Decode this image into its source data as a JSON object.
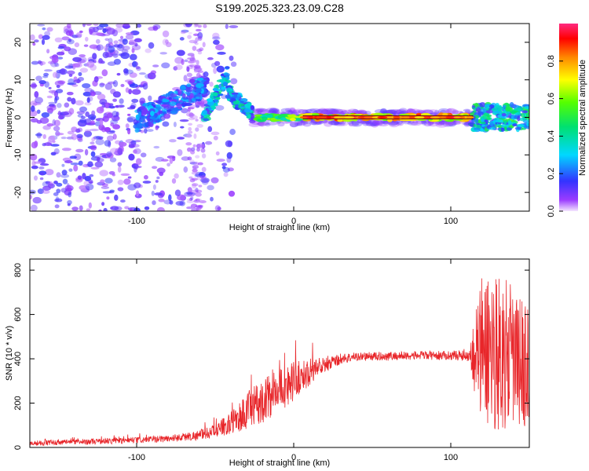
{
  "figure_title": "S199.2025.323.23.09.C28",
  "chart_data": [
    {
      "type": "heatmap",
      "title": "S199.2025.323.23.09.C28",
      "xlabel": "Height of straight line (km)",
      "ylabel": "Frequency (Hz)",
      "xlim": [
        -168,
        150
      ],
      "ylim": [
        -25,
        25
      ],
      "xticks": [
        -100,
        0,
        100
      ],
      "yticks": [
        -20,
        -10,
        0,
        10,
        20
      ],
      "colorbar": {
        "label": "Normalized spectral amplitude",
        "range": [
          0,
          1
        ],
        "ticks": [
          0.0,
          0.2,
          0.4,
          0.6,
          0.8
        ]
      },
      "features": [
        {
          "name": "scattered noise",
          "x_range": [
            -168,
            -50
          ],
          "freq_range": [
            -25,
            25
          ],
          "amplitude": 0.15
        },
        {
          "name": "rising streak",
          "x_range": [
            -100,
            -55
          ],
          "freq_range": [
            -3,
            10
          ],
          "amplitude": 0.2
        },
        {
          "name": "steep segment",
          "x_range": [
            -60,
            -25
          ],
          "freq_range": [
            -2,
            13
          ],
          "amplitude": 0.3
        },
        {
          "name": "near-zero line",
          "x_range": [
            -25,
            115
          ],
          "freq_range": [
            -1,
            1
          ],
          "amplitude": 0.95
        },
        {
          "name": "end cluster",
          "x_range": [
            115,
            150
          ],
          "freq_range": [
            -3,
            4
          ],
          "amplitude": 0.45
        }
      ]
    },
    {
      "type": "line",
      "title": "",
      "xlabel": "Height of straight line (km)",
      "ylabel": "SNR (10 * v/v)",
      "xlim": [
        -168,
        150
      ],
      "ylim": [
        0,
        850
      ],
      "xticks": [
        -100,
        0,
        100
      ],
      "yticks": [
        0,
        200,
        400,
        600,
        800
      ],
      "series": [
        {
          "name": "SNR",
          "color": "#e8262a",
          "x": [
            -168,
            -140,
            -120,
            -100,
            -80,
            -60,
            -50,
            -40,
            -30,
            -20,
            -10,
            0,
            10,
            20,
            30,
            40,
            60,
            80,
            100,
            112,
            118,
            125,
            135,
            145,
            150
          ],
          "y": [
            20,
            25,
            28,
            32,
            40,
            55,
            75,
            110,
            160,
            210,
            255,
            300,
            340,
            375,
            400,
            410,
            412,
            415,
            415,
            418,
            430,
            450,
            420,
            380,
            360
          ],
          "noise_amplitude": [
            12,
            12,
            13,
            14,
            16,
            22,
            30,
            50,
            90,
            100,
            100,
            90,
            60,
            40,
            25,
            20,
            20,
            20,
            20,
            30,
            330,
            380,
            340,
            300,
            280
          ]
        }
      ]
    }
  ]
}
